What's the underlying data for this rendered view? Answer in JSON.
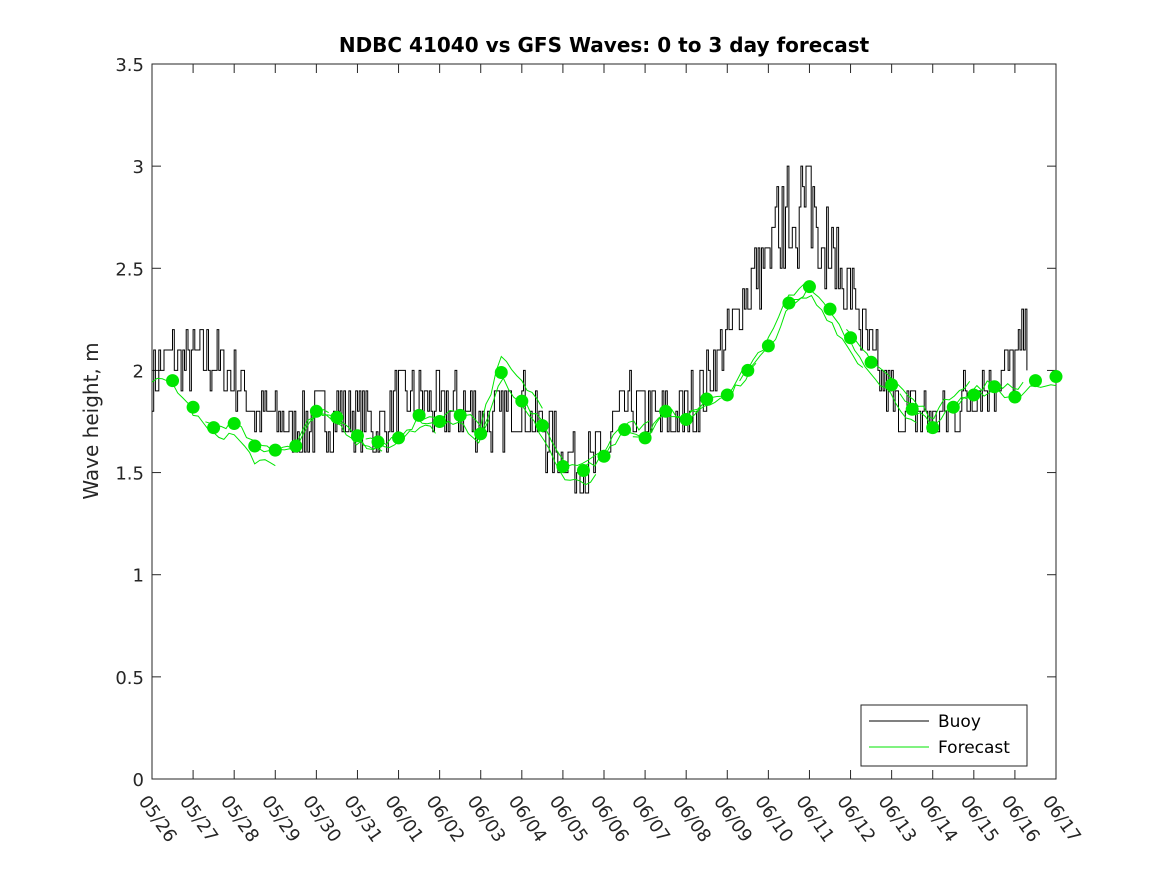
{
  "chart_data": {
    "type": "line",
    "title": "NDBC 41040 vs GFS Waves: 0 to 3 day forecast",
    "xlabel": "",
    "ylabel": "Wave height, m",
    "ylim": [
      0,
      3.5
    ],
    "yticks": [
      "0",
      "0.5",
      "1",
      "1.5",
      "2",
      "2.5",
      "3",
      "3.5"
    ],
    "xticks": [
      "05/26",
      "05/27",
      "05/28",
      "05/29",
      "05/30",
      "05/31",
      "06/01",
      "06/02",
      "06/03",
      "06/04",
      "06/05",
      "06/06",
      "06/07",
      "06/08",
      "06/09",
      "06/10",
      "06/11",
      "06/12",
      "06/13",
      "06/14",
      "06/15",
      "06/16",
      "06/17"
    ],
    "xlim": [
      "05/26",
      "06/17"
    ],
    "grid": false,
    "legend": {
      "placement": "bottom-right",
      "entries": [
        {
          "label": "Buoy",
          "color": "#000000"
        },
        {
          "label": "Forecast",
          "color": "#00e600"
        }
      ]
    },
    "colors": {
      "buoy": "#000000",
      "forecast": "#00e600"
    },
    "series": [
      {
        "name": "Buoy",
        "values_x_days_from_0526": [
          0,
          0.5,
          1,
          1.5,
          2,
          2.5,
          3,
          3.5,
          4,
          4.5,
          5,
          5.5,
          6,
          6.5,
          7,
          7.5,
          8,
          8.5,
          9,
          9.5,
          10,
          10.5,
          11,
          11.5,
          12,
          12.5,
          13,
          13.5,
          14,
          14.5,
          15,
          15.5,
          16,
          16.25,
          16.5,
          17,
          17.5,
          18,
          18.5,
          19,
          19.5,
          20,
          20.5,
          21,
          21.3
        ],
        "values": [
          2.0,
          2.05,
          2.05,
          2.05,
          1.95,
          1.8,
          1.75,
          1.7,
          1.75,
          1.8,
          1.78,
          1.7,
          1.85,
          1.88,
          1.8,
          1.85,
          1.75,
          1.75,
          1.85,
          1.7,
          1.6,
          1.5,
          1.6,
          1.8,
          1.8,
          1.75,
          1.8,
          1.95,
          2.15,
          2.4,
          2.55,
          2.75,
          2.85,
          2.7,
          2.55,
          2.4,
          2.05,
          1.85,
          1.8,
          1.75,
          1.8,
          1.9,
          1.95,
          2.05,
          2.2
        ]
      },
      {
        "name": "Forecast",
        "x_days_from_0526": [
          0.5,
          1,
          1.5,
          2,
          2.5,
          3,
          3.5,
          4,
          4.5,
          5,
          5.5,
          6,
          6.5,
          7,
          7.5,
          8,
          8.5,
          9,
          9.5,
          10,
          10.5,
          11,
          11.5,
          12,
          12.5,
          13,
          13.5,
          14,
          14.5,
          15,
          15.5,
          16,
          16.5,
          17,
          17.5,
          18,
          18.5,
          19,
          19.5,
          20,
          20.5,
          21,
          21.5,
          22
        ],
        "values": [
          1.95,
          1.82,
          1.72,
          1.74,
          1.63,
          1.61,
          1.63,
          1.8,
          1.77,
          1.68,
          1.65,
          1.67,
          1.78,
          1.75,
          1.78,
          1.69,
          1.99,
          1.85,
          1.73,
          1.53,
          1.51,
          1.58,
          1.71,
          1.67,
          1.8,
          1.76,
          1.86,
          1.88,
          2.0,
          2.12,
          2.33,
          2.41,
          2.3,
          2.16,
          2.04,
          1.93,
          1.81,
          1.72,
          1.82,
          1.88,
          1.92,
          1.87,
          1.95,
          1.97
        ]
      }
    ]
  }
}
